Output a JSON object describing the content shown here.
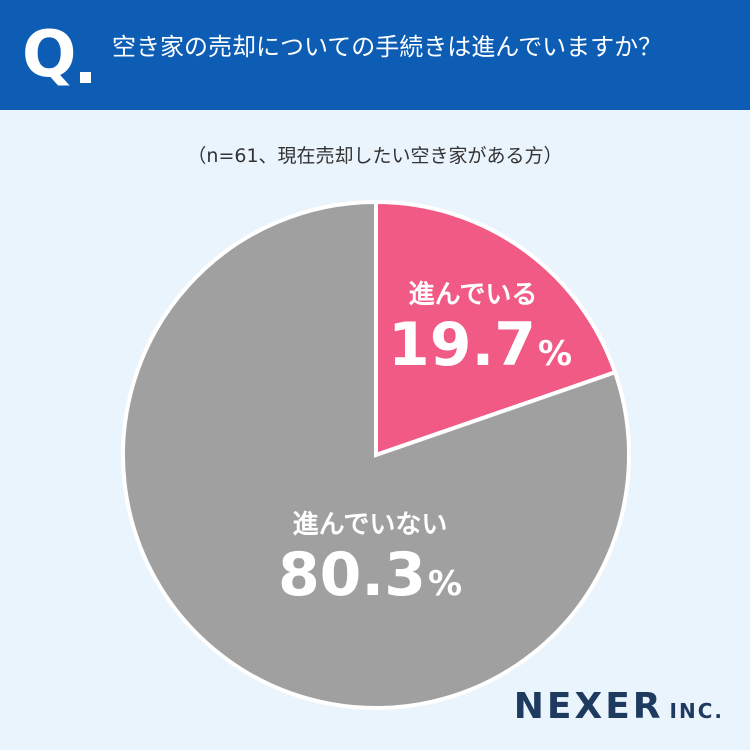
{
  "header": {
    "q_letter": "Q",
    "question": "空き家の売却についての手続きは進んでいますか？",
    "background": "#0d5db5"
  },
  "sample_note": "（n=61、現在売却したい空き家がある方）",
  "chart_data": {
    "type": "pie",
    "title": "",
    "start_angle_deg": 0,
    "direction": "clockwise",
    "categories": [
      "進んでいる",
      "進んでいない"
    ],
    "values": [
      19.7,
      80.3
    ],
    "unit": "%",
    "colors": [
      "#f15a84",
      "#a0a0a0"
    ],
    "slice_border_color": "#ffffff",
    "labels": [
      {
        "name": "進んでいる",
        "value": "19.7",
        "unit": "%"
      },
      {
        "name": "進んでいない",
        "value": "80.3",
        "unit": "%"
      }
    ]
  },
  "logo": {
    "main": "NEXER",
    "sub": "INC."
  }
}
